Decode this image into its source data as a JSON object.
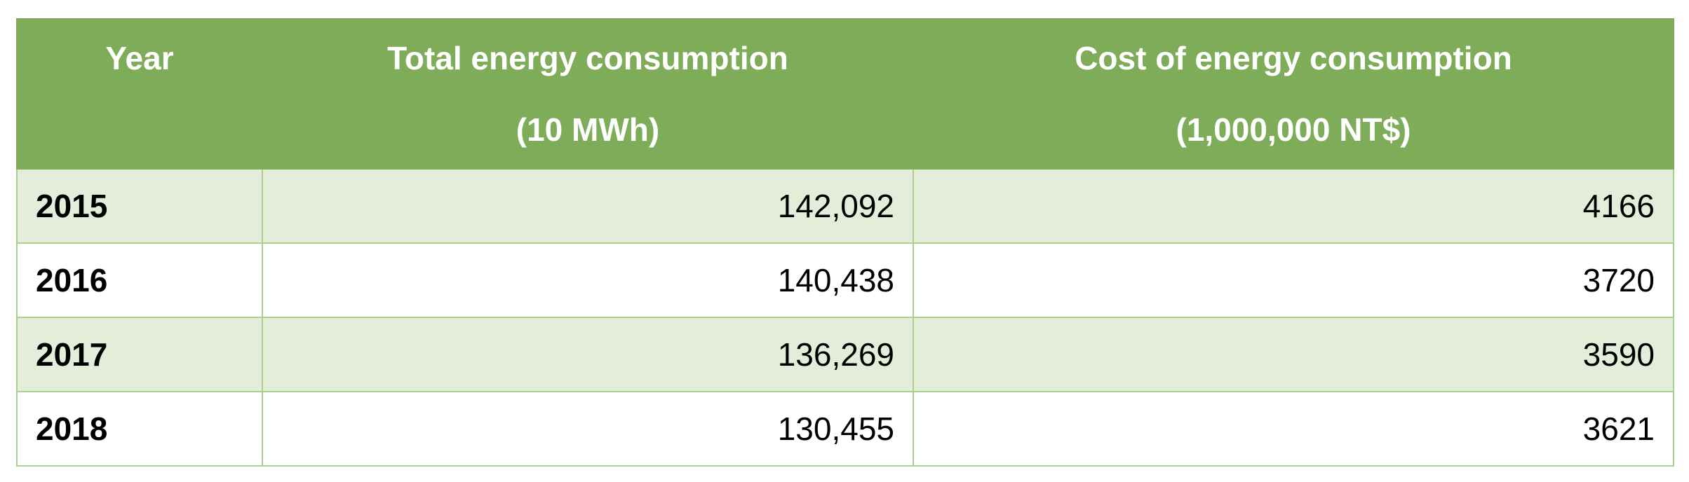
{
  "table": {
    "headers": {
      "year": "Year",
      "energy_line1": "Total energy consumption",
      "energy_line2": "(10 MWh)",
      "cost_line1": "Cost of energy consumption",
      "cost_line2": "(1,000,000 NT$)"
    },
    "rows": [
      {
        "year": "2015",
        "energy": "142,092",
        "cost": "4166"
      },
      {
        "year": "2016",
        "energy": "140,438",
        "cost": "3720"
      },
      {
        "year": "2017",
        "energy": "136,269",
        "cost": "3590"
      },
      {
        "year": "2018",
        "energy": "130,455",
        "cost": "3621"
      }
    ]
  },
  "colors": {
    "header_bg": "#7fac58",
    "band_bg": "#e3edd9",
    "border": "#a9d08e"
  }
}
